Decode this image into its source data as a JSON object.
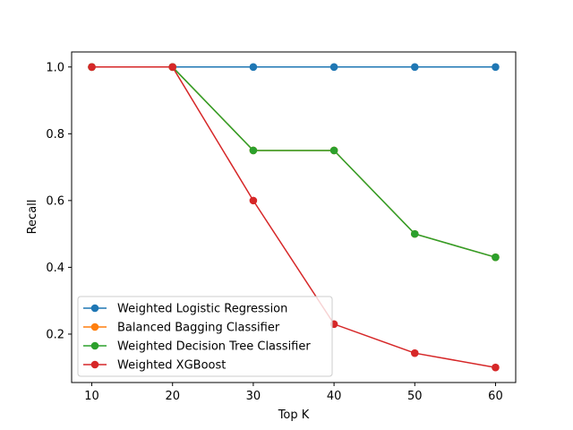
{
  "chart_data": {
    "type": "line",
    "title": "",
    "xlabel": "Top K",
    "ylabel": "Recall",
    "x": [
      10,
      20,
      30,
      40,
      50,
      60
    ],
    "xticks": [
      "10",
      "20",
      "30",
      "40",
      "50",
      "60"
    ],
    "yticks": [
      "0.2",
      "0.4",
      "0.6",
      "0.8",
      "1.0"
    ],
    "xlim": [
      7.5,
      62.5
    ],
    "ylim": [
      0.055,
      1.045
    ],
    "grid": false,
    "legend_position": "lower-left",
    "series": [
      {
        "name": "Weighted Logistic Regression",
        "color": "#1f77b4",
        "values": [
          1.0,
          1.0,
          1.0,
          1.0,
          1.0,
          1.0
        ]
      },
      {
        "name": "Balanced Bagging Classifier",
        "color": "#ff7f0e",
        "values": [
          1.0,
          1.0,
          0.75,
          0.75,
          0.5,
          0.43
        ]
      },
      {
        "name": "Weighted Decision Tree Classifier",
        "color": "#2ca02c",
        "values": [
          1.0,
          1.0,
          0.75,
          0.75,
          0.5,
          0.43
        ]
      },
      {
        "name": "Weighted XGBoost",
        "color": "#d62728",
        "values": [
          1.0,
          1.0,
          0.6,
          0.23,
          0.143,
          0.1
        ]
      }
    ]
  }
}
